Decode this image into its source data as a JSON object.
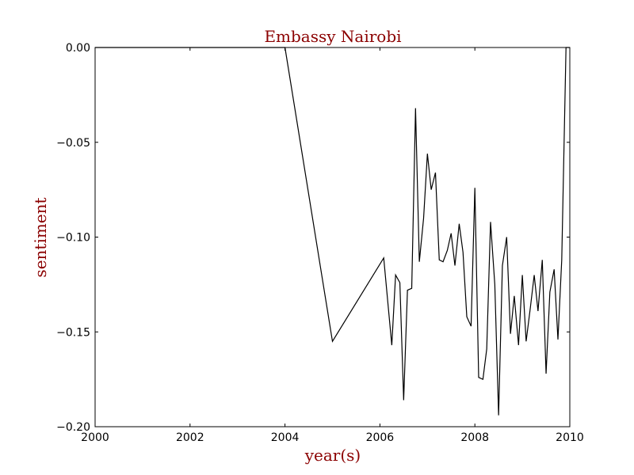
{
  "chart_data": {
    "type": "line",
    "title": "Embassy Nairobi",
    "xlabel": "year(s)",
    "ylabel": "sentiment",
    "xlim": [
      2000,
      2010
    ],
    "ylim": [
      -0.2,
      0.0
    ],
    "xticks": [
      2000,
      2002,
      2004,
      2006,
      2008,
      2010
    ],
    "xtick_labels": [
      "2000",
      "2002",
      "2004",
      "2006",
      "2008",
      "2010"
    ],
    "yticks": [
      0.0,
      -0.05,
      -0.1,
      -0.15,
      -0.2
    ],
    "ytick_labels": [
      "0.00",
      "−0.05",
      "−0.10",
      "−0.15",
      "−0.20"
    ],
    "grid": false,
    "series": [
      {
        "color": "#000000",
        "x": [
          2000.0,
          2004.0,
          2005.0,
          2006.08,
          2006.25,
          2006.33,
          2006.42,
          2006.5,
          2006.58,
          2006.67,
          2006.75,
          2006.83,
          2006.92,
          2007.0,
          2007.08,
          2007.17,
          2007.25,
          2007.33,
          2007.42,
          2007.5,
          2007.58,
          2007.67,
          2007.75,
          2007.83,
          2007.92,
          2008.0,
          2008.08,
          2008.17,
          2008.25,
          2008.33,
          2008.42,
          2008.5,
          2008.58,
          2008.67,
          2008.75,
          2008.83,
          2008.92,
          2009.0,
          2009.08,
          2009.17,
          2009.25,
          2009.33,
          2009.42,
          2009.5,
          2009.58,
          2009.67,
          2009.75,
          2009.83,
          2009.92,
          2010.0
        ],
        "y": [
          0.0,
          0.0,
          -0.155,
          -0.111,
          -0.157,
          -0.12,
          -0.124,
          -0.186,
          -0.128,
          -0.127,
          -0.032,
          -0.113,
          -0.09,
          -0.056,
          -0.075,
          -0.066,
          -0.112,
          -0.113,
          -0.107,
          -0.098,
          -0.115,
          -0.093,
          -0.108,
          -0.142,
          -0.147,
          -0.074,
          -0.174,
          -0.175,
          -0.159,
          -0.092,
          -0.125,
          -0.194,
          -0.115,
          -0.1,
          -0.151,
          -0.131,
          -0.157,
          -0.12,
          -0.155,
          -0.137,
          -0.12,
          -0.139,
          -0.112,
          -0.172,
          -0.129,
          -0.117,
          -0.154,
          -0.112,
          0.0,
          0.0
        ]
      }
    ],
    "colors": {
      "title": "#8b0000",
      "axis_label": "#8b0000",
      "axes": "#000000",
      "line": "#000000"
    }
  }
}
